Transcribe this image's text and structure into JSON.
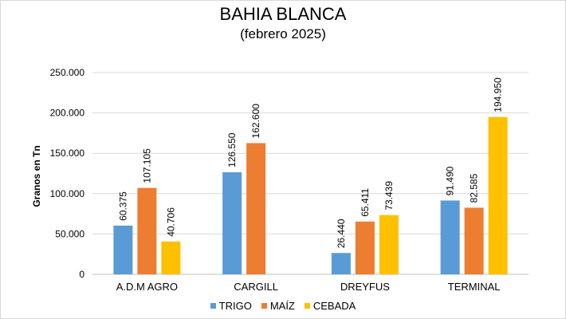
{
  "chart_data": {
    "type": "bar",
    "title": "BAHIA BLANCA",
    "subtitle": "(febrero 2025)",
    "ylabel": "Granos en Tn",
    "xlabel": "",
    "ylim": [
      0,
      250000
    ],
    "yticks": [
      0,
      50000,
      100000,
      150000,
      200000,
      250000
    ],
    "ytick_labels": [
      "0",
      "50.000",
      "100.000",
      "150.000",
      "200.000",
      "250.000"
    ],
    "grid": true,
    "legend_position": "bottom",
    "categories": [
      "A.D.M AGRO",
      "CARGILL",
      "DREYFUS",
      "TERMINAL"
    ],
    "series": [
      {
        "name": "TRIGO",
        "color": "#5b9bd5",
        "values": [
          60375,
          126550,
          26440,
          91490
        ],
        "labels": [
          "60.375",
          "126.550",
          "26.440",
          "91.490"
        ]
      },
      {
        "name": "MAÍZ",
        "color": "#ed7d31",
        "values": [
          107105,
          162600,
          65411,
          82585
        ],
        "labels": [
          "107.105",
          "162.600",
          "65.411",
          "82.585"
        ]
      },
      {
        "name": "CEBADA",
        "color": "#ffc000",
        "values": [
          40706,
          null,
          73439,
          194950
        ],
        "labels": [
          "40.706",
          null,
          "73.439",
          "194.950"
        ]
      }
    ]
  }
}
